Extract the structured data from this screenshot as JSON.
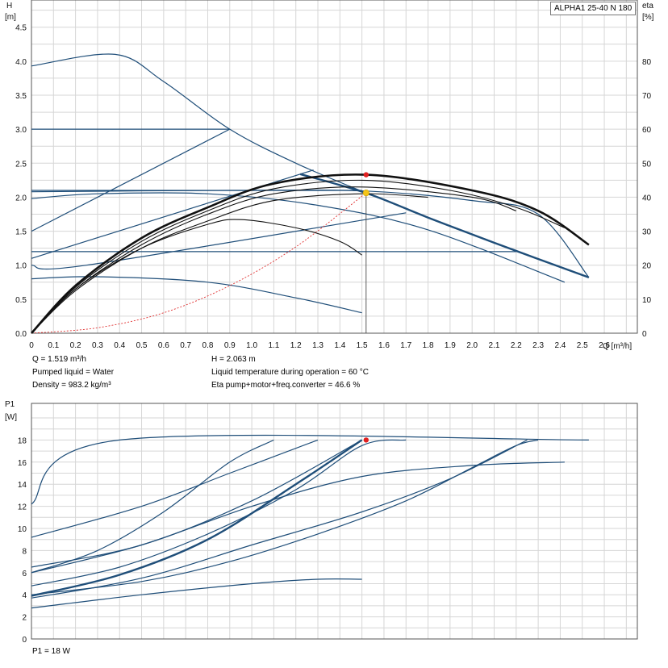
{
  "product_label": "ALPHA1 25-40 N 180",
  "info": {
    "q": "Q = 1.519 m³/h",
    "h": "H = 2.063 m",
    "liquid": "Pumped liquid = Water",
    "temperature": "Liquid temperature during operation = 60 °C",
    "density": "Density = 983.2 kg/m³",
    "eta": "Eta pump+motor+freq.converter = 46.6 %",
    "p1": "P1 = 18 W"
  },
  "colors": {
    "pump_curve": "#1f4e79",
    "efficiency": "#111111",
    "system": "#e03030",
    "grid": "#d6d6d6",
    "marker_red": "#e02020",
    "marker_yellow": "#f5c518"
  },
  "chart_data": [
    {
      "type": "line",
      "title": "",
      "xlabel": "Q [m³/h]",
      "ylabel_left": [
        "H",
        "[m]"
      ],
      "ylabel_right": [
        "eta",
        "[%]"
      ],
      "xlim": [
        0,
        2.75
      ],
      "ylim": [
        0,
        4.9
      ],
      "y2lim": [
        0,
        98
      ],
      "grid": true,
      "x_ticks": [
        "0",
        "0.1",
        "0.2",
        "0.3",
        "0.4",
        "0.5",
        "0.6",
        "0.7",
        "0.8",
        "0.9",
        "1.0",
        "1.1",
        "1.2",
        "1.3",
        "1.4",
        "1.5",
        "1.6",
        "1.7",
        "1.8",
        "1.9",
        "2.0",
        "2.1",
        "2.2",
        "2.3",
        "2.4",
        "2.5",
        "2.6"
      ],
      "y_ticks": [
        "0.0",
        "0.5",
        "1.0",
        "1.5",
        "2.0",
        "2.5",
        "3.0",
        "3.5",
        "4.0",
        "4.5"
      ],
      "y2_ticks": [
        "0",
        "10",
        "20",
        "30",
        "40",
        "50",
        "60",
        "70",
        "80"
      ],
      "head_curves": [
        {
          "style": "pump-thick",
          "points": [
            [
              1.22,
              2.34
            ],
            [
              1.52,
              2.06
            ],
            [
              1.8,
              1.7
            ],
            [
              2.1,
              1.33
            ],
            [
              2.53,
              0.82
            ]
          ]
        },
        {
          "style": "pump",
          "points": [
            [
              0,
              3.93
            ],
            [
              0.38,
              4.1
            ],
            [
              0.6,
              3.7
            ],
            [
              0.9,
              3.0
            ],
            [
              1.2,
              2.5
            ],
            [
              1.52,
              2.06
            ]
          ]
        },
        {
          "style": "pump",
          "points": [
            [
              0,
              3.0
            ],
            [
              0.9,
              3.0
            ]
          ]
        },
        {
          "style": "pump",
          "points": [
            [
              0,
              1.5
            ],
            [
              0.9,
              3.0
            ]
          ]
        },
        {
          "style": "pump",
          "points": [
            [
              0,
              2.1
            ],
            [
              1.5,
              2.1
            ]
          ]
        },
        {
          "style": "pump",
          "points": [
            [
              0,
              1.1
            ],
            [
              1.28,
              2.4
            ]
          ]
        },
        {
          "style": "pump",
          "points": [
            [
              0,
              1.0
            ],
            [
              0.25,
              1.0
            ],
            [
              1.7,
              1.77
            ]
          ]
        },
        {
          "style": "pump",
          "points": [
            [
              0,
              1.2
            ],
            [
              2.2,
              1.2
            ]
          ]
        },
        {
          "style": "pump",
          "points": [
            [
              0,
              1.98
            ],
            [
              0.3,
              2.05
            ],
            [
              0.8,
              2.05
            ],
            [
              1.3,
              1.88
            ],
            [
              1.8,
              1.52
            ],
            [
              2.42,
              0.75
            ]
          ]
        },
        {
          "style": "pump",
          "points": [
            [
              0,
              0.8
            ],
            [
              0.3,
              0.83
            ],
            [
              0.8,
              0.75
            ],
            [
              1.2,
              0.52
            ],
            [
              1.5,
              0.3
            ]
          ]
        },
        {
          "style": "pump",
          "points": [
            [
              0,
              2.08
            ],
            [
              0.9,
              2.1
            ],
            [
              1.52,
              2.09
            ],
            [
              2.0,
              1.95
            ],
            [
              2.3,
              1.75
            ],
            [
              2.53,
              0.82
            ]
          ]
        },
        {
          "style": "system",
          "points": [
            [
              0,
              0
            ],
            [
              0.3,
              0.08
            ],
            [
              0.6,
              0.3
            ],
            [
              0.9,
              0.7
            ],
            [
              1.2,
              1.27
            ],
            [
              1.519,
              2.063
            ]
          ]
        }
      ],
      "eta_curves": [
        {
          "style": "eta-thick",
          "points": [
            [
              0,
              0
            ],
            [
              0.2,
              14
            ],
            [
              0.5,
              28
            ],
            [
              0.8,
              37
            ],
            [
              1.1,
              44
            ],
            [
              1.52,
              46.6
            ],
            [
              2.0,
              42
            ],
            [
              2.3,
              36
            ],
            [
              2.53,
              26
            ]
          ]
        },
        {
          "style": "eta",
          "points": [
            [
              0,
              0
            ],
            [
              0.2,
              13.5
            ],
            [
              0.5,
              27
            ],
            [
              0.8,
              36
            ],
            [
              1.1,
              42.5
            ],
            [
              1.5,
              45
            ],
            [
              1.9,
              42
            ],
            [
              2.2,
              37
            ],
            [
              2.42,
              31
            ]
          ]
        },
        {
          "style": "eta",
          "points": [
            [
              0,
              0
            ],
            [
              0.2,
              13
            ],
            [
              0.5,
              26
            ],
            [
              0.8,
              35
            ],
            [
              1.1,
              41
            ],
            [
              1.5,
              43
            ],
            [
              2.0,
              40
            ],
            [
              2.2,
              36
            ]
          ]
        },
        {
          "style": "eta",
          "points": [
            [
              0,
              0
            ],
            [
              0.2,
              12.5
            ],
            [
              0.5,
              25
            ],
            [
              0.8,
              33
            ],
            [
              1.1,
              39
            ],
            [
              1.5,
              41
            ],
            [
              1.8,
              40
            ]
          ]
        },
        {
          "style": "eta",
          "points": [
            [
              0,
              0
            ],
            [
              0.2,
              13
            ],
            [
              0.5,
              25
            ],
            [
              0.8,
              32
            ],
            [
              0.95,
              33.4
            ],
            [
              1.2,
              31
            ],
            [
              1.4,
              27
            ],
            [
              1.5,
              23
            ]
          ]
        }
      ],
      "operating_point": {
        "x": 1.519,
        "y": 2.063
      },
      "eta_peak_point": {
        "x": 1.519,
        "y2": 46.6
      }
    },
    {
      "type": "line",
      "title": "",
      "xlabel": "",
      "ylabel_left": [
        "P1",
        "[W]"
      ],
      "xlim": [
        0,
        2.75
      ],
      "ylim": [
        0,
        20
      ],
      "grid": true,
      "y_ticks": [
        "0",
        "2",
        "4",
        "6",
        "8",
        "10",
        "12",
        "14",
        "16",
        "18"
      ],
      "power_curves": [
        {
          "style": "power",
          "points": [
            [
              0,
              12.2
            ],
            [
              0.4,
              18
            ],
            [
              2.53,
              18
            ]
          ]
        },
        {
          "style": "power",
          "points": [
            [
              0,
              9.2
            ],
            [
              0.5,
              12
            ],
            [
              0.9,
              15
            ],
            [
              1.3,
              18
            ]
          ]
        },
        {
          "style": "power",
          "points": [
            [
              0,
              6.5
            ],
            [
              0.5,
              8.5
            ],
            [
              1.0,
              12.5
            ],
            [
              1.5,
              18
            ]
          ]
        },
        {
          "style": "power",
          "points": [
            [
              0,
              6.0
            ],
            [
              0.3,
              8.0
            ],
            [
              0.6,
              11.5
            ],
            [
              0.9,
              16.0
            ],
            [
              1.1,
              18
            ]
          ]
        },
        {
          "style": "power",
          "points": [
            [
              0,
              4.8
            ],
            [
              0.4,
              6.5
            ],
            [
              0.8,
              9.5
            ],
            [
              1.2,
              13.5
            ],
            [
              1.5,
              17.5
            ],
            [
              1.7,
              18
            ]
          ]
        },
        {
          "style": "power-thick",
          "points": [
            [
              0,
              3.9
            ],
            [
              0.4,
              5.8
            ],
            [
              0.8,
              9.0
            ],
            [
              1.2,
              14.0
            ],
            [
              1.5,
              18
            ]
          ]
        },
        {
          "style": "power",
          "points": [
            [
              0,
              4.0
            ],
            [
              0.5,
              5.2
            ],
            [
              0.9,
              7.0
            ],
            [
              1.3,
              9.5
            ],
            [
              1.7,
              12.5
            ],
            [
              2.0,
              15.5
            ],
            [
              2.2,
              17.5
            ],
            [
              2.3,
              18
            ]
          ]
        },
        {
          "style": "power",
          "points": [
            [
              0,
              3.7
            ],
            [
              0.5,
              5.5
            ],
            [
              1.0,
              8.5
            ],
            [
              1.5,
              11.5
            ],
            [
              1.9,
              14.5
            ],
            [
              2.25,
              18
            ]
          ]
        },
        {
          "style": "power",
          "points": [
            [
              0,
              6.0
            ],
            [
              0.5,
              8.5
            ],
            [
              1.0,
              12.0
            ],
            [
              1.5,
              14.7
            ],
            [
              2.0,
              15.7
            ],
            [
              2.42,
              16.0
            ]
          ]
        },
        {
          "style": "power",
          "points": [
            [
              0,
              2.8
            ],
            [
              0.5,
              4.0
            ],
            [
              1.0,
              5.0
            ],
            [
              1.3,
              5.4
            ],
            [
              1.5,
              5.4
            ]
          ]
        }
      ],
      "operating_point": {
        "x": 1.519,
        "y": 18
      }
    }
  ]
}
